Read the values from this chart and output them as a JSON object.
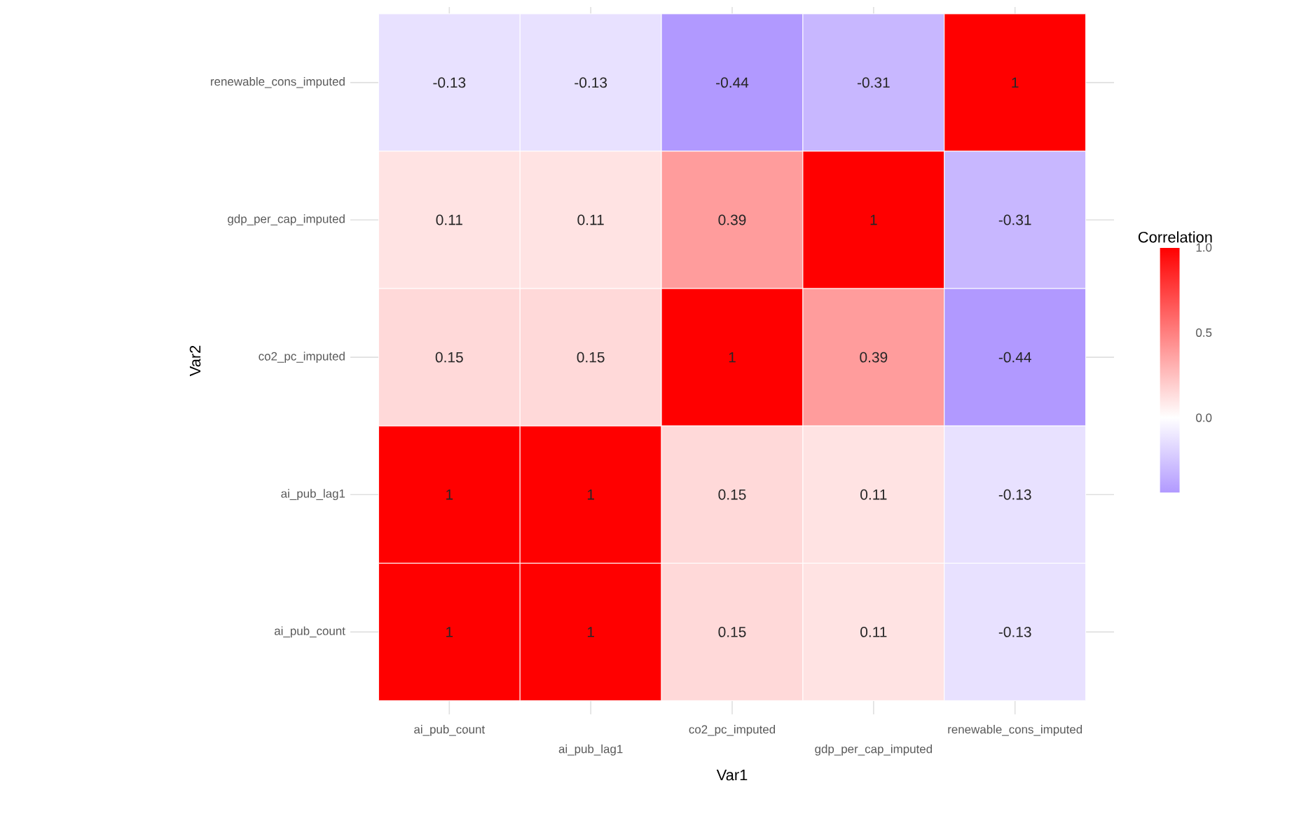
{
  "chart_data": {
    "type": "heatmap",
    "xlabel": "Var1",
    "ylabel": "Var2",
    "clabel": "Correlation",
    "categories": [
      "ai_pub_count",
      "ai_pub_lag1",
      "co2_pc_imputed",
      "gdp_per_cap_imputed",
      "renewable_cons_imputed"
    ],
    "y_categories": [
      "renewable_cons_imputed",
      "gdp_per_cap_imputed",
      "co2_pc_imputed",
      "ai_pub_lag1",
      "ai_pub_count"
    ],
    "cells": [
      [
        -0.13,
        -0.13,
        -0.44,
        -0.31,
        1
      ],
      [
        0.11,
        0.11,
        0.39,
        1,
        -0.31
      ],
      [
        0.15,
        0.15,
        1,
        0.39,
        -0.44
      ],
      [
        1,
        1,
        0.15,
        0.11,
        -0.13
      ],
      [
        1,
        1,
        0.15,
        0.11,
        -0.13
      ]
    ],
    "data_labels": true,
    "grid": true,
    "clim": [
      -0.44,
      1
    ],
    "cticks": [
      {
        "value": 0,
        "label": "0.0"
      },
      {
        "value": 0.5,
        "label": "0.5"
      },
      {
        "value": 1,
        "label": "1.0"
      }
    ]
  }
}
